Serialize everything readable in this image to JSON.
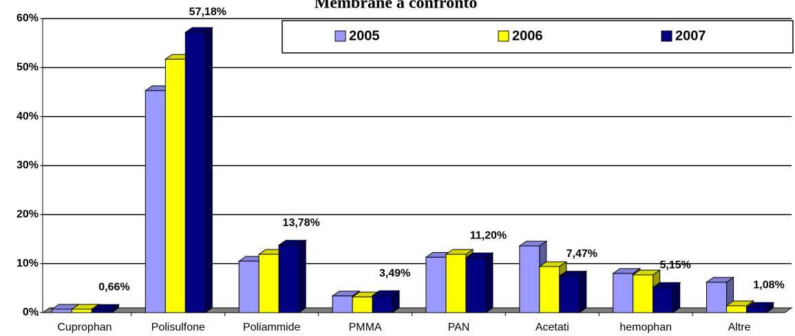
{
  "chart_data": {
    "type": "bar3d",
    "title": "Membrane a confronto",
    "categories": [
      "Cuprophan",
      "Polisulfone",
      "Poliammide",
      "PMMA",
      "PAN",
      "Acetati",
      "hemophan",
      "Altre"
    ],
    "series": [
      {
        "name": "2005",
        "color": "#9999ff",
        "values": [
          0.7,
          45.3,
          10.5,
          3.4,
          11.3,
          13.6,
          8.0,
          6.2
        ]
      },
      {
        "name": "2006",
        "color": "#ffff00",
        "values": [
          0.7,
          51.7,
          11.9,
          3.2,
          11.9,
          9.4,
          7.7,
          1.4
        ]
      },
      {
        "name": "2007",
        "color": "#000080",
        "values": [
          0.66,
          57.18,
          13.78,
          3.49,
          11.2,
          7.47,
          5.15,
          1.08
        ],
        "value_labels": [
          "0,66%",
          "57,18%",
          "13,78%",
          "3,49%",
          "11,20%",
          "7,47%",
          "5,15%",
          "1,08%"
        ]
      }
    ],
    "ylim": [
      0,
      60
    ],
    "yticks": [
      {
        "value": 0,
        "label": "0%"
      },
      {
        "value": 10,
        "label": "10%"
      },
      {
        "value": 20,
        "label": "20%"
      },
      {
        "value": 30,
        "label": "30%"
      },
      {
        "value": 40,
        "label": "40%"
      },
      {
        "value": 50,
        "label": "50%"
      },
      {
        "value": 60,
        "label": "60%"
      }
    ],
    "grid": true
  }
}
